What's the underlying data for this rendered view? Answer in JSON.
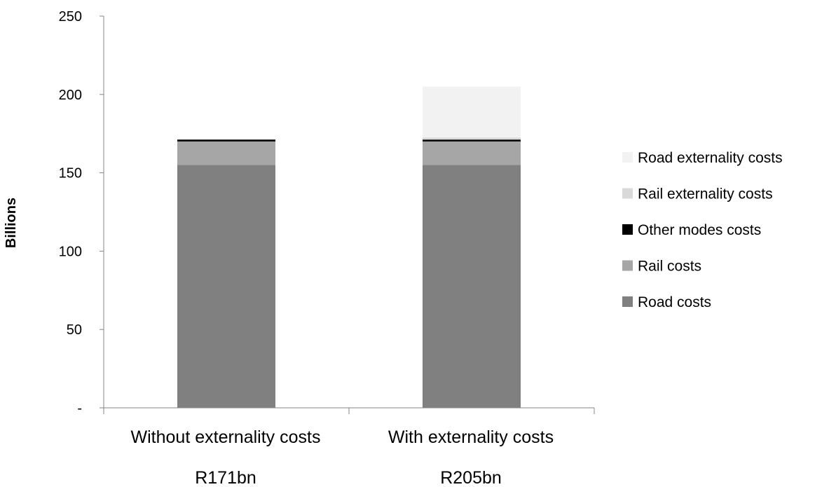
{
  "chart_data": {
    "type": "bar",
    "stacked": true,
    "ylabel": "Billions",
    "xlabel": "",
    "ylim": [
      0,
      250
    ],
    "y_ticks": [
      {
        "value": 0,
        "label": "-"
      },
      {
        "value": 50,
        "label": "50"
      },
      {
        "value": 100,
        "label": "100"
      },
      {
        "value": 150,
        "label": "150"
      },
      {
        "value": 200,
        "label": "200"
      },
      {
        "value": 250,
        "label": "250"
      }
    ],
    "categories": [
      "Without externality costs",
      "With externality costs"
    ],
    "category_sublabels": [
      "R171bn",
      "R205bn"
    ],
    "series": [
      {
        "name": "Road costs",
        "color": "#808080",
        "values": [
          155,
          155
        ]
      },
      {
        "name": "Rail costs",
        "color": "#a6a6a6",
        "values": [
          15,
          15
        ]
      },
      {
        "name": "Other modes costs",
        "color": "#000000",
        "values": [
          1.2,
          1.2
        ]
      },
      {
        "name": "Rail externality costs",
        "color": "#d9d9d9",
        "values": [
          0,
          1.3
        ]
      },
      {
        "name": "Road externality costs",
        "color": "#f2f2f2",
        "values": [
          0,
          32.5
        ]
      }
    ],
    "legend_position": "right",
    "grid": false
  }
}
